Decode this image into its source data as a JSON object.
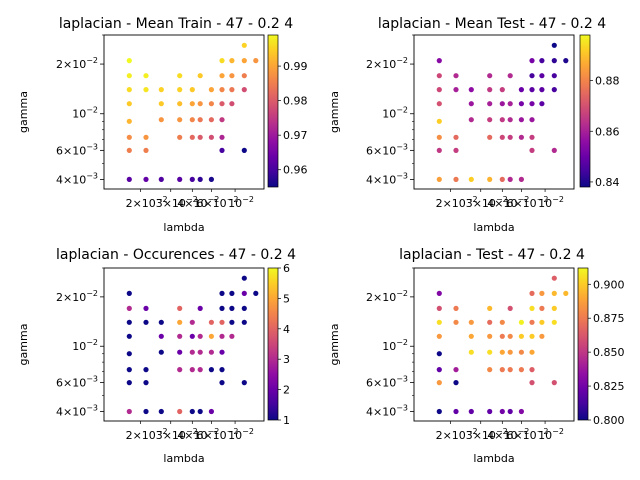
{
  "chart_data": [
    {
      "type": "scatter",
      "title": "laplacian - Mean Train - 47 - 0.2 4",
      "xlabel": "lambda",
      "ylabel": "gamma",
      "xscale": "log",
      "yscale": "log",
      "xlim": [
        0.0125,
        0.032
      ],
      "ylim": [
        0.0035,
        0.03
      ],
      "y_tick_labels": [
        "$4\\times10^{-3}$",
        "$6\\times10^{-3}$",
        "$10^{-2}$",
        "$2\\times10^{-2}$"
      ],
      "x_tick_labels": [
        "$2\\times10^{-2}$",
        "$3\\times10^{-2}$",
        "$4\\times10^{-2}$",
        "$6\\times10^{-2}$",
        "$10^{-2}$"
      ],
      "colorbar": {
        "min": 0.955,
        "max": 0.999,
        "ticks": [
          "0.96",
          "0.97",
          "0.98",
          "0.99"
        ],
        "colormap": "plasma"
      },
      "points": [
        [
          0.0145,
          0.004,
          0.962
        ],
        [
          0.0145,
          0.006,
          0.985
        ],
        [
          0.0145,
          0.0072,
          0.987
        ],
        [
          0.0145,
          0.009,
          0.992
        ],
        [
          0.0145,
          0.0115,
          0.994
        ],
        [
          0.0145,
          0.014,
          0.996
        ],
        [
          0.0145,
          0.017,
          0.998
        ],
        [
          0.0145,
          0.021,
          0.999
        ],
        [
          0.016,
          0.004,
          0.963
        ],
        [
          0.016,
          0.006,
          0.985
        ],
        [
          0.016,
          0.0072,
          0.988
        ],
        [
          0.016,
          0.014,
          0.997
        ],
        [
          0.016,
          0.017,
          0.998
        ],
        [
          0.0175,
          0.004,
          0.961
        ],
        [
          0.0175,
          0.0092,
          0.988
        ],
        [
          0.0175,
          0.0115,
          0.994
        ],
        [
          0.0175,
          0.014,
          0.995
        ],
        [
          0.0195,
          0.004,
          0.962
        ],
        [
          0.0195,
          0.0072,
          0.985
        ],
        [
          0.0195,
          0.0092,
          0.988
        ],
        [
          0.0195,
          0.0115,
          0.993
        ],
        [
          0.0195,
          0.014,
          0.995
        ],
        [
          0.0195,
          0.017,
          0.996
        ],
        [
          0.021,
          0.004,
          0.96
        ],
        [
          0.021,
          0.0072,
          0.982
        ],
        [
          0.021,
          0.0092,
          0.986
        ],
        [
          0.021,
          0.0115,
          0.99
        ],
        [
          0.021,
          0.014,
          0.994
        ],
        [
          0.022,
          0.004,
          0.958
        ],
        [
          0.022,
          0.0072,
          0.98
        ],
        [
          0.022,
          0.0092,
          0.984
        ],
        [
          0.022,
          0.0115,
          0.988
        ],
        [
          0.022,
          0.017,
          0.994
        ],
        [
          0.0235,
          0.004,
          0.956
        ],
        [
          0.0235,
          0.0072,
          0.978
        ],
        [
          0.0235,
          0.0092,
          0.982
        ],
        [
          0.0235,
          0.0115,
          0.986
        ],
        [
          0.0235,
          0.014,
          0.99
        ],
        [
          0.025,
          0.006,
          0.96
        ],
        [
          0.025,
          0.0072,
          0.972
        ],
        [
          0.025,
          0.0092,
          0.975
        ],
        [
          0.025,
          0.0115,
          0.98
        ],
        [
          0.025,
          0.014,
          0.986
        ],
        [
          0.025,
          0.017,
          0.99
        ],
        [
          0.025,
          0.021,
          0.996
        ],
        [
          0.0265,
          0.0115,
          0.978
        ],
        [
          0.0265,
          0.014,
          0.984
        ],
        [
          0.0265,
          0.017,
          0.988
        ],
        [
          0.0265,
          0.021,
          0.992
        ],
        [
          0.0285,
          0.006,
          0.955
        ],
        [
          0.0285,
          0.014,
          0.978
        ],
        [
          0.0285,
          0.017,
          0.985
        ],
        [
          0.0285,
          0.021,
          0.99
        ],
        [
          0.0285,
          0.026,
          0.995
        ],
        [
          0.0305,
          0.021,
          0.988
        ]
      ]
    },
    {
      "type": "scatter",
      "title": "laplacian - Mean Test - 47 - 0.2 4",
      "xlabel": "lambda",
      "ylabel": "gamma",
      "xscale": "log",
      "yscale": "log",
      "xlim": [
        0.0125,
        0.032
      ],
      "ylim": [
        0.0035,
        0.03
      ],
      "y_tick_labels": [
        "$4\\times10^{-3}$",
        "$6\\times10^{-3}$",
        "$10^{-2}$",
        "$2\\times10^{-2}$"
      ],
      "x_tick_labels": [
        "$2\\times10^{-2}$",
        "$3\\times10^{-2}$",
        "$4\\times10^{-2}$",
        "$6\\times10^{-2}$",
        "$10^{-2}$"
      ],
      "colorbar": {
        "min": 0.838,
        "max": 0.898,
        "ticks": [
          "0.84",
          "0.86",
          "0.88"
        ],
        "colormap": "plasma"
      },
      "points": [
        [
          0.0145,
          0.004,
          0.885
        ],
        [
          0.0145,
          0.006,
          0.865
        ],
        [
          0.0145,
          0.0072,
          0.882
        ],
        [
          0.0145,
          0.009,
          0.892
        ],
        [
          0.0145,
          0.0115,
          0.87
        ],
        [
          0.0145,
          0.014,
          0.868
        ],
        [
          0.0145,
          0.017,
          0.868
        ],
        [
          0.0145,
          0.021,
          0.855
        ],
        [
          0.016,
          0.004,
          0.878
        ],
        [
          0.016,
          0.006,
          0.866
        ],
        [
          0.016,
          0.0072,
          0.875
        ],
        [
          0.016,
          0.014,
          0.86
        ],
        [
          0.016,
          0.017,
          0.862
        ],
        [
          0.0175,
          0.004,
          0.892
        ],
        [
          0.0175,
          0.0092,
          0.862
        ],
        [
          0.0175,
          0.0115,
          0.858
        ],
        [
          0.0175,
          0.014,
          0.856
        ],
        [
          0.0195,
          0.004,
          0.888
        ],
        [
          0.0195,
          0.0072,
          0.875
        ],
        [
          0.0195,
          0.0092,
          0.866
        ],
        [
          0.0195,
          0.0115,
          0.86
        ],
        [
          0.0195,
          0.014,
          0.865
        ],
        [
          0.0195,
          0.017,
          0.862
        ],
        [
          0.021,
          0.004,
          0.875
        ],
        [
          0.021,
          0.0072,
          0.868
        ],
        [
          0.021,
          0.0092,
          0.865
        ],
        [
          0.021,
          0.0115,
          0.858
        ],
        [
          0.021,
          0.014,
          0.866
        ],
        [
          0.022,
          0.004,
          0.862
        ],
        [
          0.022,
          0.0072,
          0.866
        ],
        [
          0.022,
          0.0092,
          0.862
        ],
        [
          0.022,
          0.0115,
          0.86
        ],
        [
          0.022,
          0.017,
          0.862
        ],
        [
          0.0235,
          0.004,
          0.862
        ],
        [
          0.0235,
          0.0072,
          0.862
        ],
        [
          0.0235,
          0.0092,
          0.858
        ],
        [
          0.0235,
          0.0115,
          0.852
        ],
        [
          0.0235,
          0.014,
          0.85
        ],
        [
          0.025,
          0.006,
          0.866
        ],
        [
          0.025,
          0.0072,
          0.866
        ],
        [
          0.025,
          0.0092,
          0.858
        ],
        [
          0.025,
          0.0115,
          0.852
        ],
        [
          0.025,
          0.014,
          0.848
        ],
        [
          0.025,
          0.017,
          0.845
        ],
        [
          0.025,
          0.021,
          0.852
        ],
        [
          0.0265,
          0.0115,
          0.848
        ],
        [
          0.0265,
          0.014,
          0.848
        ],
        [
          0.0265,
          0.017,
          0.848
        ],
        [
          0.0265,
          0.021,
          0.845
        ],
        [
          0.0285,
          0.006,
          0.862
        ],
        [
          0.0285,
          0.014,
          0.845
        ],
        [
          0.0285,
          0.017,
          0.845
        ],
        [
          0.0285,
          0.021,
          0.842
        ],
        [
          0.0285,
          0.026,
          0.838
        ],
        [
          0.0305,
          0.021,
          0.84
        ]
      ]
    },
    {
      "type": "scatter",
      "title": "laplacian - Occurences - 47 - 0.2 4",
      "xlabel": "lambda",
      "ylabel": "gamma",
      "xscale": "log",
      "yscale": "log",
      "xlim": [
        0.0125,
        0.032
      ],
      "ylim": [
        0.0035,
        0.03
      ],
      "y_tick_labels": [
        "$4\\times10^{-3}$",
        "$6\\times10^{-3}$",
        "$10^{-2}$",
        "$2\\times10^{-2}$"
      ],
      "x_tick_labels": [
        "$2\\times10^{-2}$",
        "$3\\times10^{-2}$",
        "$4\\times10^{-2}$",
        "$6\\times10^{-2}$",
        "$10^{-2}$"
      ],
      "colorbar": {
        "min": 1,
        "max": 6,
        "ticks": [
          "1",
          "2",
          "3",
          "4",
          "5",
          "6"
        ],
        "colormap": "plasma"
      },
      "points": [
        [
          0.0145,
          0.004,
          3
        ],
        [
          0.0145,
          0.006,
          1
        ],
        [
          0.0145,
          0.0072,
          1
        ],
        [
          0.0145,
          0.009,
          1
        ],
        [
          0.0145,
          0.0115,
          1
        ],
        [
          0.0145,
          0.014,
          1
        ],
        [
          0.0145,
          0.017,
          3
        ],
        [
          0.0145,
          0.021,
          1
        ],
        [
          0.016,
          0.004,
          1
        ],
        [
          0.016,
          0.006,
          1
        ],
        [
          0.016,
          0.0072,
          1
        ],
        [
          0.016,
          0.014,
          1
        ],
        [
          0.016,
          0.017,
          2
        ],
        [
          0.0175,
          0.004,
          1
        ],
        [
          0.0175,
          0.0092,
          1
        ],
        [
          0.0175,
          0.0115,
          2
        ],
        [
          0.0175,
          0.014,
          1
        ],
        [
          0.0195,
          0.004,
          4
        ],
        [
          0.0195,
          0.0072,
          3
        ],
        [
          0.0195,
          0.0092,
          2
        ],
        [
          0.0195,
          0.0115,
          3
        ],
        [
          0.0195,
          0.014,
          5
        ],
        [
          0.0195,
          0.017,
          4
        ],
        [
          0.021,
          0.004,
          1
        ],
        [
          0.021,
          0.0072,
          3
        ],
        [
          0.021,
          0.0092,
          3
        ],
        [
          0.021,
          0.0115,
          2
        ],
        [
          0.021,
          0.014,
          3
        ],
        [
          0.022,
          0.004,
          1
        ],
        [
          0.022,
          0.0072,
          3
        ],
        [
          0.022,
          0.0092,
          3
        ],
        [
          0.022,
          0.0115,
          3
        ],
        [
          0.022,
          0.017,
          2
        ],
        [
          0.0235,
          0.004,
          2
        ],
        [
          0.0235,
          0.0072,
          1
        ],
        [
          0.0235,
          0.0092,
          3
        ],
        [
          0.0235,
          0.0115,
          5
        ],
        [
          0.0235,
          0.014,
          4
        ],
        [
          0.025,
          0.006,
          1
        ],
        [
          0.025,
          0.0072,
          1
        ],
        [
          0.025,
          0.0092,
          2
        ],
        [
          0.025,
          0.0115,
          3
        ],
        [
          0.025,
          0.014,
          4
        ],
        [
          0.025,
          0.017,
          1
        ],
        [
          0.025,
          0.021,
          1
        ],
        [
          0.0265,
          0.0115,
          3
        ],
        [
          0.0265,
          0.014,
          1
        ],
        [
          0.0265,
          0.017,
          1
        ],
        [
          0.0265,
          0.021,
          1
        ],
        [
          0.0285,
          0.006,
          1
        ],
        [
          0.0285,
          0.014,
          1
        ],
        [
          0.0285,
          0.017,
          1
        ],
        [
          0.0285,
          0.021,
          2
        ],
        [
          0.0285,
          0.026,
          1
        ],
        [
          0.0305,
          0.021,
          1
        ]
      ]
    },
    {
      "type": "scatter",
      "title": "laplacian - Test - 47 - 0.2 4",
      "xlabel": "lambda",
      "ylabel": "gamma",
      "xscale": "log",
      "yscale": "log",
      "xlim": [
        0.0125,
        0.032
      ],
      "ylim": [
        0.0035,
        0.03
      ],
      "y_tick_labels": [
        "$4\\times10^{-3}$",
        "$6\\times10^{-3}$",
        "$10^{-2}$",
        "$2\\times10^{-2}$"
      ],
      "x_tick_labels": [
        "$2\\times10^{-2}$",
        "$3\\times10^{-2}$",
        "$4\\times10^{-2}$",
        "$6\\times10^{-2}$",
        "$10^{-2}$"
      ],
      "colorbar": {
        "min": 0.8,
        "max": 0.912,
        "ticks": [
          "0.800",
          "0.825",
          "0.850",
          "0.875",
          "0.900"
        ],
        "colormap": "plasma"
      },
      "points": [
        [
          0.0145,
          0.004,
          0.8
        ],
        [
          0.0145,
          0.006,
          0.885
        ],
        [
          0.0145,
          0.0072,
          0.82
        ],
        [
          0.0145,
          0.009,
          0.8
        ],
        [
          0.0145,
          0.0115,
          0.885
        ],
        [
          0.0145,
          0.014,
          0.905
        ],
        [
          0.0145,
          0.017,
          0.86
        ],
        [
          0.0145,
          0.021,
          0.83
        ],
        [
          0.016,
          0.004,
          0.82
        ],
        [
          0.016,
          0.006,
          0.8
        ],
        [
          0.016,
          0.0072,
          0.84
        ],
        [
          0.016,
          0.014,
          0.88
        ],
        [
          0.016,
          0.017,
          0.875
        ],
        [
          0.0175,
          0.004,
          0.82
        ],
        [
          0.0175,
          0.0092,
          0.905
        ],
        [
          0.0175,
          0.0115,
          0.89
        ],
        [
          0.0175,
          0.014,
          0.885
        ],
        [
          0.0195,
          0.004,
          0.82
        ],
        [
          0.0195,
          0.0072,
          0.88
        ],
        [
          0.0195,
          0.0092,
          0.905
        ],
        [
          0.0195,
          0.0115,
          0.885
        ],
        [
          0.0195,
          0.014,
          0.87
        ],
        [
          0.0195,
          0.017,
          0.895
        ],
        [
          0.021,
          0.004,
          0.825
        ],
        [
          0.021,
          0.0072,
          0.875
        ],
        [
          0.021,
          0.0092,
          0.89
        ],
        [
          0.021,
          0.0115,
          0.875
        ],
        [
          0.021,
          0.014,
          0.88
        ],
        [
          0.022,
          0.004,
          0.82
        ],
        [
          0.022,
          0.0072,
          0.875
        ],
        [
          0.022,
          0.0092,
          0.885
        ],
        [
          0.022,
          0.0115,
          0.88
        ],
        [
          0.022,
          0.017,
          0.86
        ],
        [
          0.0235,
          0.004,
          0.83
        ],
        [
          0.0235,
          0.0072,
          0.875
        ],
        [
          0.0235,
          0.0092,
          0.88
        ],
        [
          0.0235,
          0.0115,
          0.9
        ],
        [
          0.0235,
          0.014,
          0.91
        ],
        [
          0.025,
          0.006,
          0.86
        ],
        [
          0.025,
          0.0072,
          0.865
        ],
        [
          0.025,
          0.0092,
          0.89
        ],
        [
          0.025,
          0.0115,
          0.9
        ],
        [
          0.025,
          0.014,
          0.875
        ],
        [
          0.025,
          0.017,
          0.905
        ],
        [
          0.025,
          0.021,
          0.87
        ],
        [
          0.0265,
          0.0115,
          0.885
        ],
        [
          0.0265,
          0.014,
          0.9
        ],
        [
          0.0265,
          0.017,
          0.875
        ],
        [
          0.0265,
          0.021,
          0.885
        ],
        [
          0.0285,
          0.006,
          0.86
        ],
        [
          0.0285,
          0.014,
          0.905
        ],
        [
          0.0285,
          0.017,
          0.9
        ],
        [
          0.0285,
          0.021,
          0.895
        ],
        [
          0.0285,
          0.026,
          0.865
        ],
        [
          0.0305,
          0.021,
          0.895
        ]
      ]
    }
  ]
}
